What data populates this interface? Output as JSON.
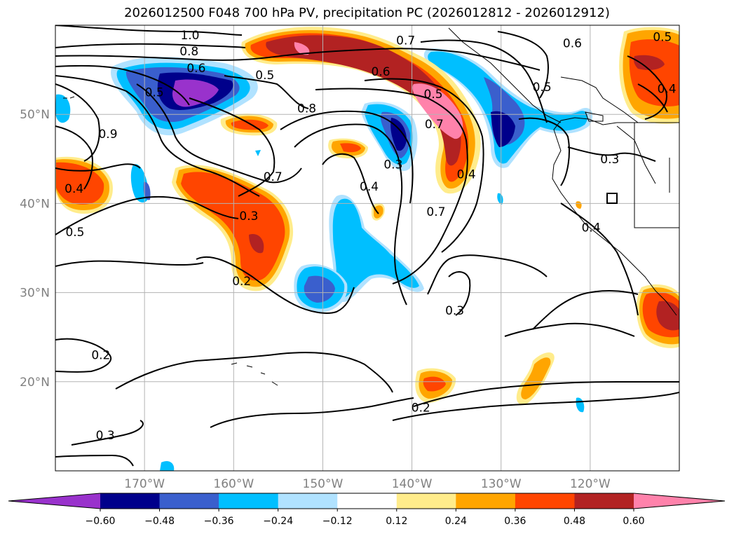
{
  "title": "2026012500 F048 700 hPa PV, precipitation PC (2026012812 - 2026012912)",
  "map": {
    "lon_range": [
      -180,
      -110
    ],
    "lat_range": [
      10,
      60
    ],
    "lat_ticks": [
      {
        "value": 20,
        "label": "20°N"
      },
      {
        "value": 30,
        "label": "30°N"
      },
      {
        "value": 40,
        "label": "40°N"
      },
      {
        "value": 50,
        "label": "50°N"
      }
    ],
    "lon_ticks": [
      {
        "value": -170,
        "label": "170°W"
      },
      {
        "value": -160,
        "label": "160°W"
      },
      {
        "value": -150,
        "label": "150°W"
      },
      {
        "value": -140,
        "label": "140°W"
      },
      {
        "value": -130,
        "label": "130°W"
      },
      {
        "value": -120,
        "label": "120°W"
      }
    ],
    "grid": true,
    "contour_labels": [
      {
        "text": "1.0",
        "lon": -164.9,
        "lat": 58.9
      },
      {
        "text": "0.8",
        "lon": -165.0,
        "lat": 57.1
      },
      {
        "text": "0.6",
        "lon": -164.2,
        "lat": 55.2
      },
      {
        "text": "0.5",
        "lon": -168.9,
        "lat": 52.5
      },
      {
        "text": "0.5",
        "lon": -156.5,
        "lat": 54.4
      },
      {
        "text": "0.8",
        "lon": -151.8,
        "lat": 50.7
      },
      {
        "text": "0.9",
        "lon": -174.1,
        "lat": 47.8
      },
      {
        "text": "0.4",
        "lon": -177.9,
        "lat": 41.7
      },
      {
        "text": "0.5",
        "lon": -177.8,
        "lat": 36.8
      },
      {
        "text": "0.3",
        "lon": -158.3,
        "lat": 38.6
      },
      {
        "text": "0.7",
        "lon": -155.6,
        "lat": 43.0
      },
      {
        "text": "0.2",
        "lon": -159.1,
        "lat": 31.3
      },
      {
        "text": "0.3",
        "lon": -142.1,
        "lat": 44.4
      },
      {
        "text": "0.4",
        "lon": -144.8,
        "lat": 41.9
      },
      {
        "text": "0.7",
        "lon": -140.7,
        "lat": 58.3
      },
      {
        "text": "0.6",
        "lon": -143.5,
        "lat": 54.8
      },
      {
        "text": "0.5",
        "lon": -137.6,
        "lat": 52.3
      },
      {
        "text": "0.7",
        "lon": -137.5,
        "lat": 48.9
      },
      {
        "text": "0.4",
        "lon": -133.9,
        "lat": 43.3
      },
      {
        "text": "0.7",
        "lon": -137.3,
        "lat": 39.1
      },
      {
        "text": "0.3",
        "lon": -135.2,
        "lat": 28.0
      },
      {
        "text": "0.2",
        "lon": -174.9,
        "lat": 23.0
      },
      {
        "text": "0.3",
        "lon": -174.4,
        "lat": 14.0
      },
      {
        "text": "0.2",
        "lon": -139.0,
        "lat": 17.1
      },
      {
        "text": "0.6",
        "lon": -122.0,
        "lat": 58.0
      },
      {
        "text": "0.5",
        "lon": -125.4,
        "lat": 53.1
      },
      {
        "text": "0.3",
        "lon": -117.8,
        "lat": 45.0
      },
      {
        "text": "0.4",
        "lon": -119.9,
        "lat": 37.3
      },
      {
        "text": "0.5",
        "lon": -111.9,
        "lat": 58.7
      },
      {
        "text": "0.4",
        "lon": -111.4,
        "lat": 52.9
      }
    ]
  },
  "colorbar": {
    "levels": [
      -0.6,
      -0.48,
      -0.36,
      -0.24,
      -0.12,
      0.12,
      0.24,
      0.36,
      0.48,
      0.6
    ],
    "labels": [
      "−0.60",
      "−0.48",
      "−0.36",
      "−0.24",
      "−0.12",
      "0.12",
      "0.24",
      "0.36",
      "0.48",
      "0.60"
    ],
    "colors": [
      "#9932cc",
      "#00008b",
      "#3a5fcd",
      "#00bfff",
      "#b0e2ff",
      "#ffffff",
      "#ffec8b",
      "#ffa500",
      "#ff4500",
      "#b22222",
      "#ff82ab"
    ],
    "extend": "both"
  }
}
